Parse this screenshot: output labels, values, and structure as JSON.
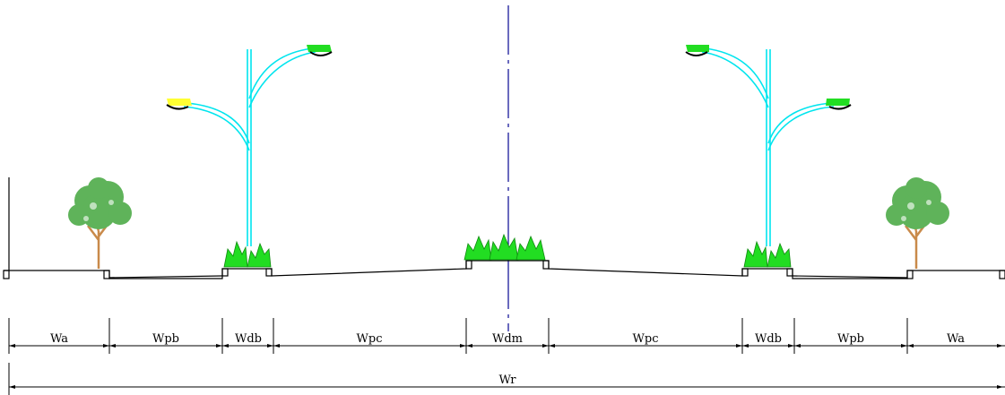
{
  "segments": {
    "wa_left": "Wa",
    "wpb_left": "Wpb",
    "wdb_left": "Wdb",
    "wpc_left": "Wpc",
    "wdm": "Wdm",
    "wpc_right": "Wpc",
    "wdb_right": "Wdb",
    "wpb_right": "Wpb",
    "wa_right": "Wa"
  },
  "total": "Wr",
  "colors": {
    "pole": "#00e5ee",
    "lamp_left_low": "#ffff33",
    "lamp_green": "#22dd22",
    "shrub": "#22dd22",
    "tree_foliage": "#5fb35a",
    "tree_trunk": "#c98a4a",
    "centerline": "#1a1a9a",
    "line": "#000000"
  }
}
